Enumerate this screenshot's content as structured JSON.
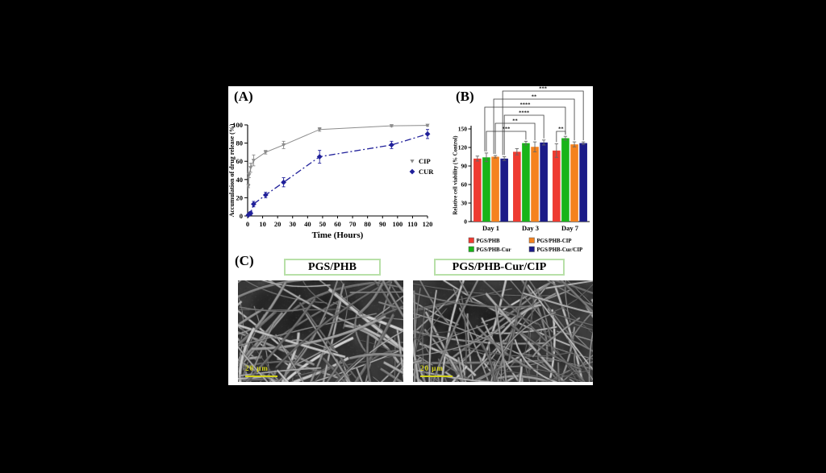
{
  "figure": {
    "background": "#000000",
    "panel_bg": "#ffffff",
    "scale_bar_color": "#d4d41c",
    "title_border_color": "#b8e0a8",
    "panel_a": {
      "label": "(A)"
    },
    "panel_b": {
      "label": "(B)"
    },
    "panel_c": {
      "label": "(C)",
      "images": [
        {
          "title": "PGS/PHB",
          "scale_bar": "20 µm"
        },
        {
          "title": "PGS/PHB-Cur/CIP",
          "scale_bar": "20 µm"
        }
      ]
    }
  },
  "chart_data": [
    {
      "type": "line",
      "panel": "A",
      "title": "",
      "xlabel": "Time (Hours)",
      "ylabel": "Accumulation of drug release (%)",
      "xlim": [
        0,
        120
      ],
      "ylim": [
        0,
        100
      ],
      "xticks": [
        0,
        10,
        20,
        30,
        40,
        50,
        60,
        70,
        80,
        90,
        100,
        110,
        120
      ],
      "yticks": [
        0,
        20,
        40,
        60,
        80,
        100
      ],
      "x": [
        0.5,
        1,
        2,
        4,
        12,
        24,
        48,
        96,
        120
      ],
      "series": [
        {
          "name": "CIP",
          "color": "#8c8c8c",
          "marker": "triangle",
          "line": "solid",
          "values": [
            33,
            45,
            53,
            61,
            70,
            78,
            95,
            99,
            99.5
          ],
          "errors": [
            2,
            3,
            5,
            6,
            2,
            4,
            2,
            1,
            1
          ]
        },
        {
          "name": "CUR",
          "color": "#20209a",
          "marker": "diamond",
          "line": "dashdot",
          "values": [
            1,
            2,
            3,
            13,
            23,
            37,
            65,
            78,
            90
          ],
          "errors": [
            0.5,
            1,
            2,
            3,
            3,
            5,
            7,
            4,
            5
          ]
        }
      ],
      "legend_position": "right",
      "grid": false
    },
    {
      "type": "bar",
      "panel": "B",
      "title": "",
      "xlabel": "",
      "ylabel": "Relative cell viability (% Control)",
      "categories": [
        "Day 1",
        "Day 3",
        "Day 7"
      ],
      "ylim": [
        0,
        150
      ],
      "yticks": [
        0,
        30,
        60,
        90,
        120,
        150
      ],
      "series": [
        {
          "name": "PGS/PHB",
          "color": "#ee3b31",
          "values": [
            102,
            113,
            115
          ],
          "errors": [
            4,
            5,
            11
          ]
        },
        {
          "name": "PGS/PHB-Cur",
          "color": "#18b418",
          "values": [
            104,
            127,
            135
          ],
          "errors": [
            7,
            3,
            3
          ]
        },
        {
          "name": "PGS/PHB-CIP",
          "color": "#f5821e",
          "values": [
            105,
            121,
            125
          ],
          "errors": [
            2,
            8,
            4
          ]
        },
        {
          "name": "PGS/PHB-Cur/CIP",
          "color": "#1c1c88",
          "values": [
            102,
            128,
            127
          ],
          "errors": [
            3,
            4,
            2
          ]
        }
      ],
      "significance": [
        {
          "label": "***",
          "from": {
            "category": 0,
            "series": 1
          },
          "to": {
            "category": 1,
            "series": 1
          },
          "row": 0
        },
        {
          "label": "**",
          "from": {
            "category": 0,
            "series": 2
          },
          "to": {
            "category": 1,
            "series": 2
          },
          "row": 1
        },
        {
          "label": "****",
          "from": {
            "category": 0,
            "series": 3
          },
          "to": {
            "category": 1,
            "series": 3
          },
          "row": 2
        },
        {
          "label": "****",
          "from": {
            "category": 0,
            "series": 1
          },
          "to": {
            "category": 2,
            "series": 1
          },
          "row": 3
        },
        {
          "label": "**",
          "from": {
            "category": 0,
            "series": 2
          },
          "to": {
            "category": 2,
            "series": 2
          },
          "row": 4
        },
        {
          "label": "***",
          "from": {
            "category": 0,
            "series": 3
          },
          "to": {
            "category": 2,
            "series": 3
          },
          "row": 5
        },
        {
          "label": "**",
          "from": {
            "category": 2,
            "series": 0
          },
          "to": {
            "category": 2,
            "series": 1
          },
          "row": 0
        }
      ],
      "legend_position": "bottom",
      "grid": false
    }
  ]
}
